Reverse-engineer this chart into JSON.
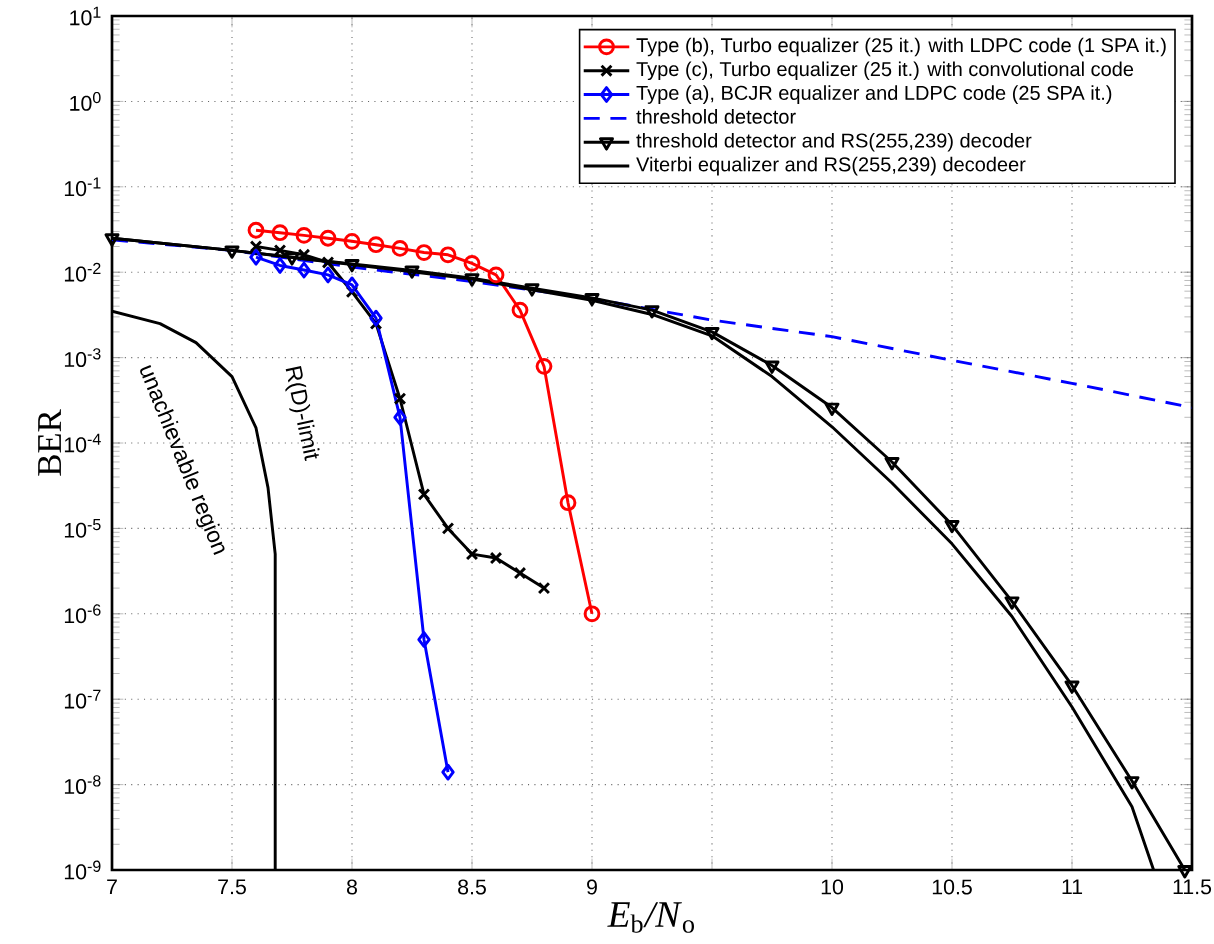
{
  "chart_data": {
    "type": "line",
    "xlabel": "*E*$_{b}$*/N*$_{o}$",
    "ylabel": "BER",
    "xlim": [
      7,
      11.5
    ],
    "ylim": [
      1e-09,
      10
    ],
    "log": "y",
    "grid": true,
    "legend": "top right",
    "xticks": [
      7,
      7.5,
      8,
      8.5,
      9,
      {
        "value": 9.5,
        "label": null
      },
      10,
      10.5,
      11,
      11.5
    ],
    "yticks": [
      {
        "value": 1e-09,
        "label": "10$^{-9}$"
      },
      {
        "value": 1e-08,
        "label": "10$^{-8}$"
      },
      {
        "value": 1e-07,
        "label": "10$^{-7}$"
      },
      {
        "value": 1e-06,
        "label": "10$^{-6}$"
      },
      {
        "value": 1e-05,
        "label": "10$^{-5}$"
      },
      {
        "value": 0.0001,
        "label": "10$^{-4}$"
      },
      {
        "value": 0.001,
        "label": "10$^{-3}$"
      },
      {
        "value": 0.01,
        "label": "10$^{-2}$"
      },
      {
        "value": 0.1,
        "label": "10$^{-1}$"
      },
      {
        "value": 1,
        "label": "10$^{0}$"
      },
      {
        "value": 10,
        "label": "10$^{1}$"
      }
    ],
    "series": [
      {
        "name": "Type (b), Turbo equalizer (25 it.) with LDPC code (1  SPA it.)",
        "color": "#ff0000",
        "marker": "circle",
        "line_style": "solid",
        "x": [
          7.6,
          7.7,
          7.8,
          7.9,
          8.0,
          8.1,
          8.2,
          8.3,
          8.4,
          8.5,
          8.6,
          8.7,
          8.8,
          8.9,
          9.0
        ],
        "values": [
          0.031,
          0.029,
          0.027,
          0.025,
          0.023,
          0.021,
          0.019,
          0.017,
          0.016,
          0.0127,
          0.0093,
          0.0036,
          0.00079,
          2e-05,
          1e-06
        ]
      },
      {
        "name": "Type (c), Turbo equalizer (25 it.) with convolutional code",
        "color": "#000000",
        "marker": "cross",
        "line_style": "solid",
        "x": [
          7.6,
          7.7,
          7.8,
          7.9,
          8.0,
          8.1,
          8.2,
          8.3,
          8.4,
          8.5,
          8.6,
          8.7,
          8.8
        ],
        "values": [
          0.02,
          0.018,
          0.016,
          0.013,
          0.0059,
          0.0025,
          0.00033,
          2.5e-05,
          1e-05,
          5e-06,
          4.5e-06,
          3e-06,
          2e-06
        ]
      },
      {
        "name": "Type (a), BCJR equalizer and LDPC code (25 SPA it.)",
        "color": "#0000ff",
        "marker": "diamond",
        "line_style": "solid",
        "x": [
          7.6,
          7.7,
          7.8,
          7.9,
          8.0,
          8.1,
          8.2,
          8.3,
          8.4
        ],
        "values": [
          0.015,
          0.012,
          0.0106,
          0.0093,
          0.0071,
          0.0029,
          0.0002,
          5e-07,
          1.4e-08
        ]
      },
      {
        "name": "threshold detector",
        "color": "#0000ff",
        "marker": "none",
        "line_style": "dashed",
        "x": [
          7.0,
          7.5,
          8.0,
          8.5,
          9.0,
          9.5,
          10.0,
          10.5,
          11.0,
          11.5
        ],
        "values": [
          0.024,
          0.018,
          0.0115,
          0.0078,
          0.0049,
          0.00275,
          0.00176,
          0.00093,
          0.0005,
          0.00026
        ]
      },
      {
        "name": "threshold detector and RS(255,239) decoder",
        "color": "#000000",
        "marker": "triangle",
        "line_style": "solid",
        "x": [
          7.0,
          7.5,
          7.75,
          8.0,
          8.25,
          8.5,
          8.75,
          9.0,
          9.25,
          9.5,
          9.75,
          10.0,
          10.25,
          10.5,
          10.75,
          11.0,
          11.25,
          11.47
        ],
        "values": [
          0.025,
          0.018,
          0.015,
          0.0125,
          0.0105,
          0.0085,
          0.0065,
          0.005,
          0.0036,
          0.002,
          0.00081,
          0.00026,
          6e-05,
          1.1e-05,
          1.4e-06,
          1.45e-07,
          1.1e-08,
          1e-09
        ]
      },
      {
        "name": "Viterbi equalizer and RS(255,239) decodeer",
        "color": "#000000",
        "marker": "none",
        "line_style": "solid",
        "x": [
          7.0,
          7.5,
          8.0,
          8.5,
          9.0,
          9.25,
          9.5,
          9.75,
          10.0,
          10.25,
          10.5,
          10.75,
          11.0,
          11.25,
          11.34
        ],
        "values": [
          0.025,
          0.018,
          0.0123,
          0.0083,
          0.0047,
          0.0032,
          0.0018,
          0.0006,
          0.000155,
          3.4e-05,
          6.6e-06,
          9.3e-07,
          8.1e-08,
          5.5e-09,
          1e-09
        ]
      },
      {
        "color": "#000000",
        "marker": "none",
        "line_style": "solid",
        "x": [
          7.0,
          7.2,
          7.35,
          7.5,
          7.6,
          7.65,
          7.68,
          7.68
        ],
        "values": [
          0.0035,
          0.0025,
          0.0015,
          0.0006,
          0.00015,
          3e-05,
          5e-06,
          1e-09
        ]
      }
    ],
    "annotations": [
      "R(D)-limit",
      "unachievable region"
    ]
  }
}
